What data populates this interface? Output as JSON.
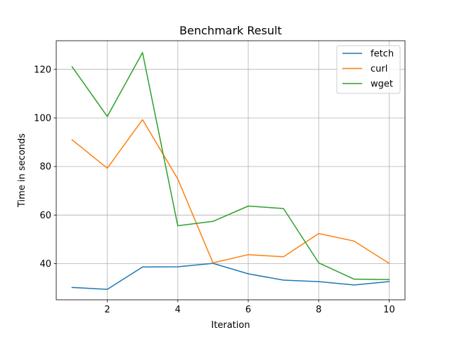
{
  "chart_data": {
    "type": "line",
    "title": "Benchmark Result",
    "xlabel": "Iteration",
    "ylabel": "Time in seconds",
    "x": [
      1,
      2,
      3,
      4,
      5,
      6,
      7,
      8,
      9,
      10
    ],
    "xlim": [
      0.55,
      10.45
    ],
    "ylim": [
      25.1,
      131.8
    ],
    "xticks": [
      2,
      4,
      6,
      8,
      10
    ],
    "yticks": [
      40,
      60,
      80,
      100,
      120
    ],
    "grid": true,
    "legend_position": "top-right",
    "series": [
      {
        "name": "fetch",
        "color": "#1f77b4",
        "values": [
          30.2,
          29.4,
          38.6,
          38.7,
          40.1,
          35.8,
          33.2,
          32.6,
          31.2,
          32.6
        ]
      },
      {
        "name": "curl",
        "color": "#ff7f0e",
        "values": [
          91.0,
          79.3,
          99.3,
          74.9,
          40.3,
          43.7,
          42.8,
          52.4,
          49.3,
          40.1
        ]
      },
      {
        "name": "wget",
        "color": "#2ca02c",
        "values": [
          121.1,
          100.6,
          126.9,
          55.6,
          57.4,
          63.7,
          62.7,
          40.3,
          33.6,
          33.4
        ]
      }
    ]
  }
}
